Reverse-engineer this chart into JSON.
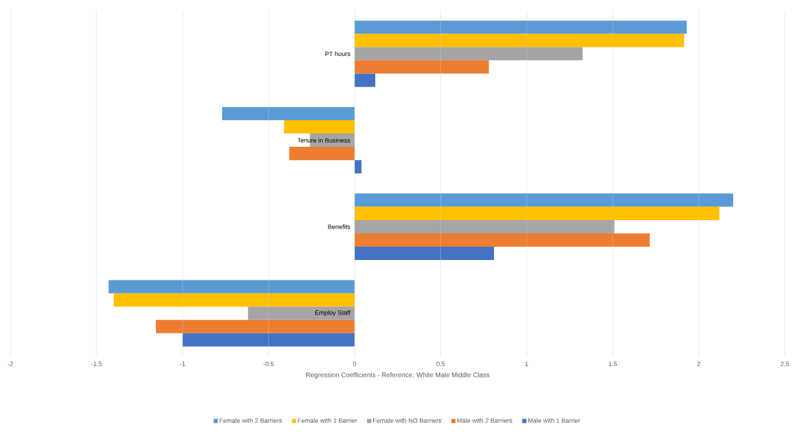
{
  "chart_data": {
    "type": "bar",
    "orientation": "horizontal",
    "xlabel": "Regression Coefficients - Reference:  White Male Middle Class",
    "categories": [
      "PT hours",
      "Tenure in Business",
      "Benefits",
      "Employ Staff"
    ],
    "series": [
      {
        "name": "Female with 2 Barriers",
        "color": "#5b9bd5",
        "values": [
          1.93,
          -0.77,
          2.2,
          -1.43
        ]
      },
      {
        "name": "Female with 1 Barrier",
        "color": "#ffc000",
        "values": [
          1.915,
          -0.41,
          2.12,
          -1.4
        ]
      },
      {
        "name": "Female with NO Barriers",
        "color": "#a5a5a5",
        "values": [
          1.325,
          -0.26,
          1.51,
          -0.62
        ]
      },
      {
        "name": "Male with 2 Barriers",
        "color": "#ed7d31",
        "values": [
          0.78,
          -0.38,
          1.715,
          -1.155
        ]
      },
      {
        "name": "Male with 1 Barrier",
        "color": "#4472c4",
        "values": [
          0.12,
          0.04,
          0.81,
          -1.0
        ]
      }
    ],
    "xlim": [
      -2,
      2.5
    ],
    "xticks": [
      -2,
      -1.5,
      -1,
      -0.5,
      0,
      0.5,
      1,
      1.5,
      2,
      2.5
    ],
    "grid": "x",
    "legend": "bottom"
  }
}
